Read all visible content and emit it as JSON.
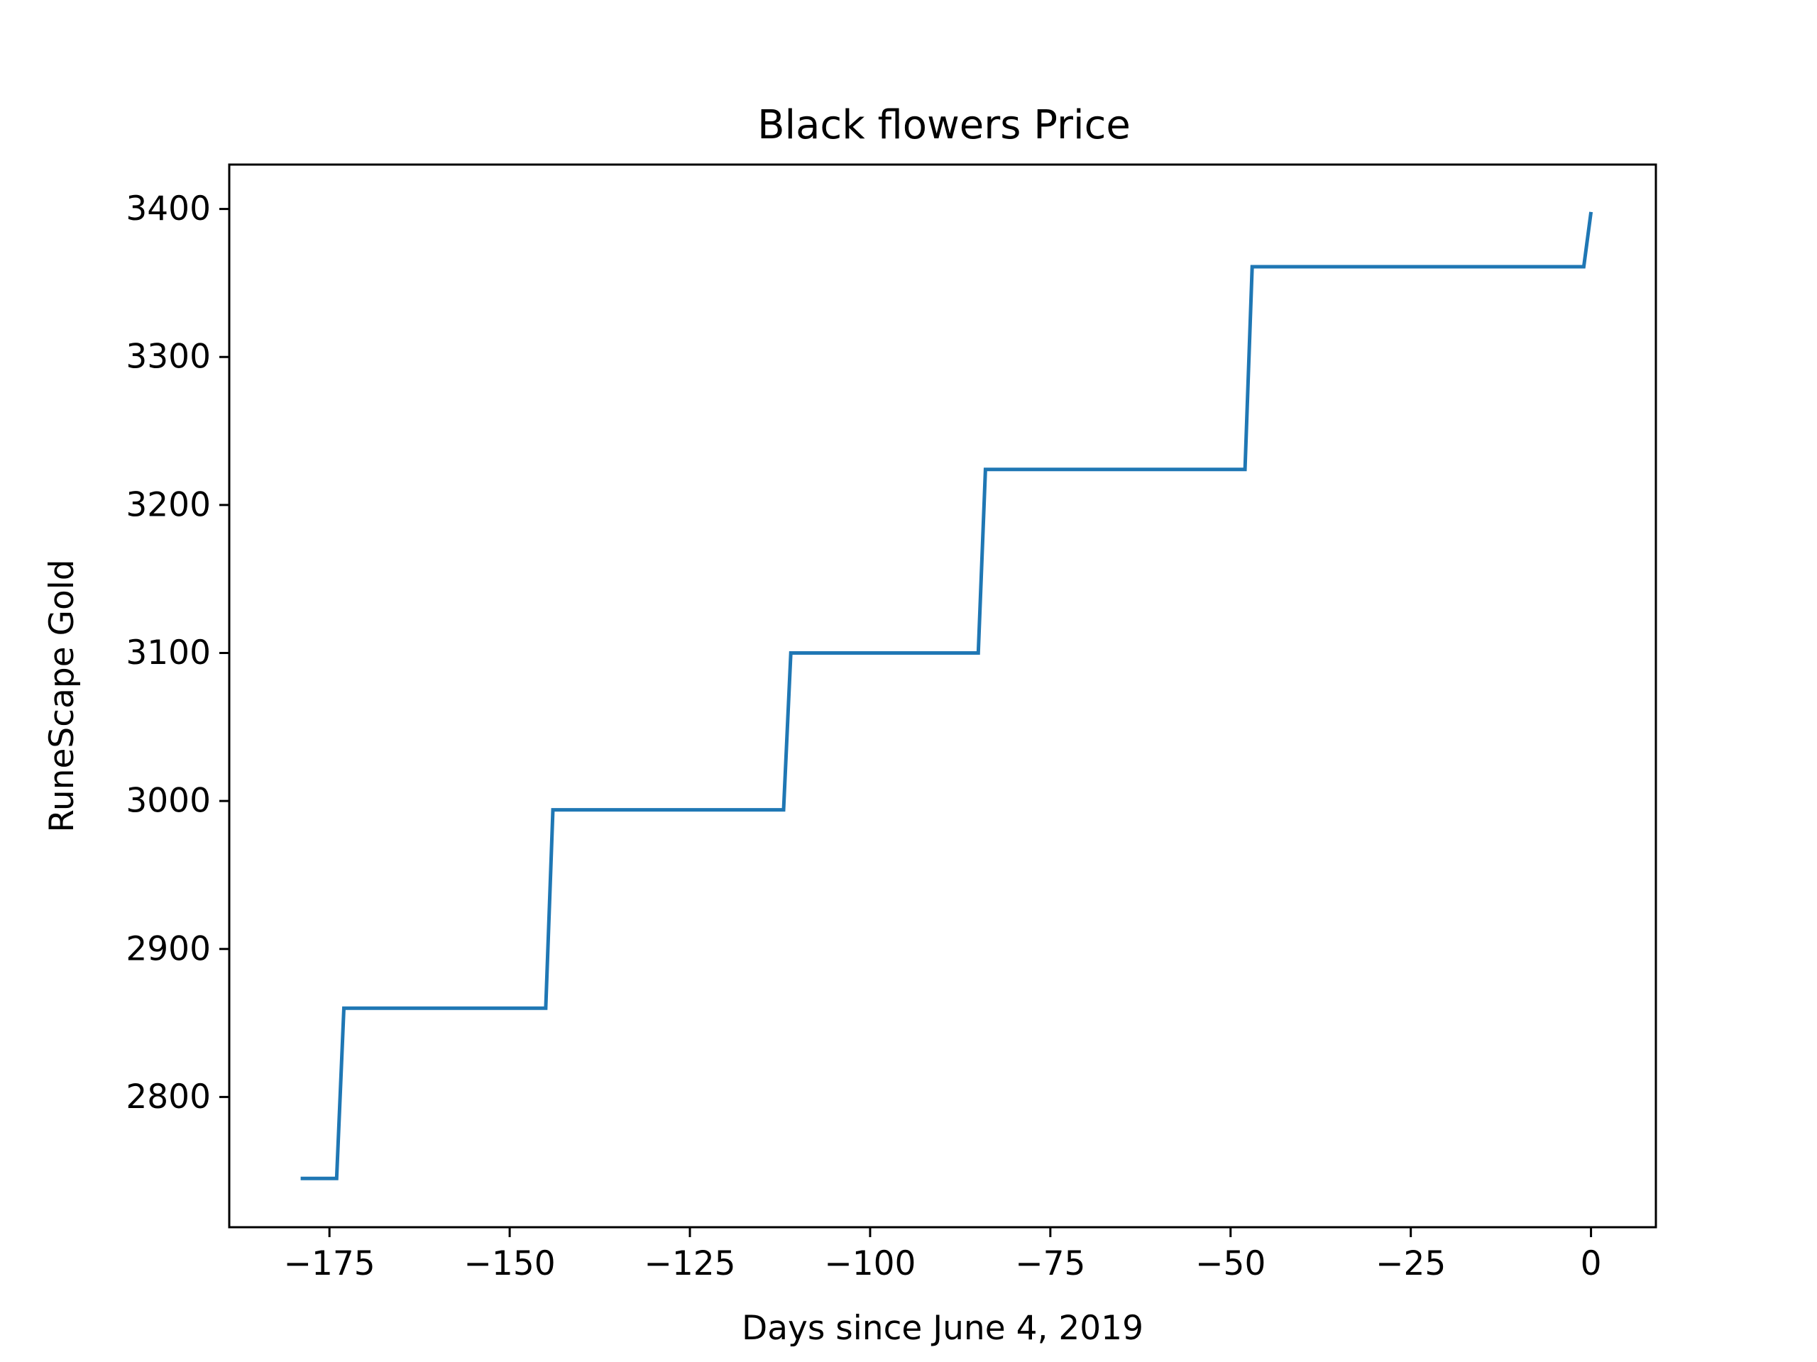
{
  "chart_data": {
    "type": "line",
    "title": "Black flowers Price",
    "xlabel": "Days since June 4, 2019",
    "ylabel": "RuneScape Gold",
    "xlim": [
      -188.9,
      9
    ],
    "ylim": [
      2712,
      3430
    ],
    "x_ticks": [
      -175,
      -150,
      -125,
      -100,
      -75,
      -50,
      -25,
      0
    ],
    "x_tick_labels": [
      "−175",
      "−150",
      "−125",
      "−100",
      "−75",
      "−50",
      "−25",
      "0"
    ],
    "y_ticks": [
      2800,
      2900,
      3000,
      3100,
      3200,
      3300,
      3400
    ],
    "y_tick_labels": [
      "2800",
      "2900",
      "3000",
      "3100",
      "3200",
      "3300",
      "3400"
    ],
    "grid": false,
    "series": [
      {
        "color": "#1f77b4",
        "x": [
          -179,
          -174,
          -173,
          -145,
          -144,
          -112,
          -111,
          -85,
          -84,
          -48,
          -47,
          -1,
          0
        ],
        "y": [
          2745,
          2745,
          2860,
          2860,
          2994,
          2994,
          3100,
          3100,
          3224,
          3224,
          3361,
          3361,
          3398
        ]
      }
    ]
  }
}
